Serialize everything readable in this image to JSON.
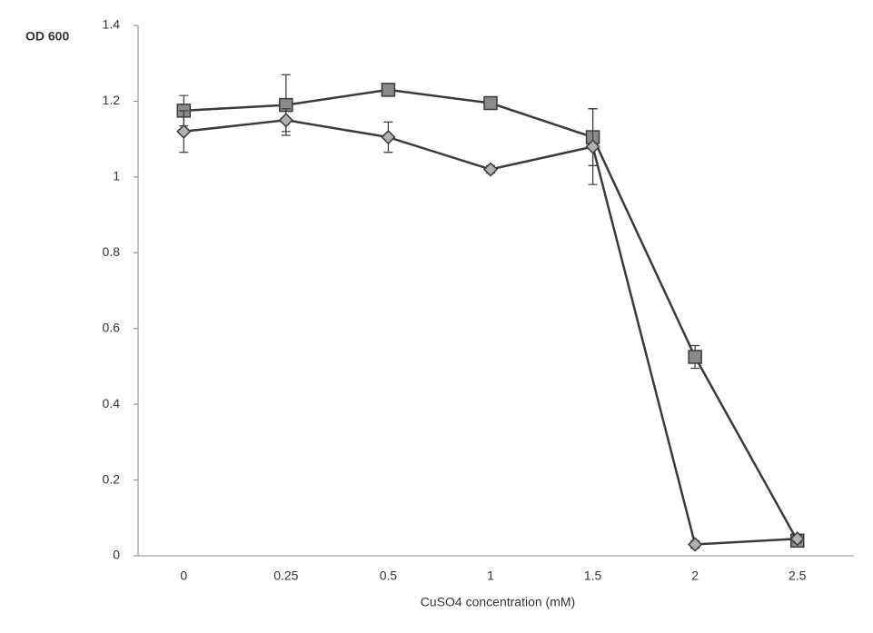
{
  "chart_data": {
    "type": "line",
    "y_label": "OD 600",
    "x_label": "CuSO4 concentration (mM)",
    "categories": [
      "0",
      "0.25",
      "0.5",
      "1",
      "1.5",
      "2",
      "2.5"
    ],
    "series": [
      {
        "marker": "square",
        "color": "#3a3a3a",
        "values": [
          1.175,
          1.19,
          1.23,
          1.195,
          1.105,
          0.525,
          0.04
        ],
        "errors": [
          0.04,
          0.08,
          0.01,
          0.01,
          0.075,
          0.03,
          0.01
        ]
      },
      {
        "marker": "diamond",
        "color": "#3a3a3a",
        "values": [
          1.12,
          1.15,
          1.105,
          1.02,
          1.08,
          0.03,
          0.045
        ],
        "errors": [
          0.055,
          0.03,
          0.04,
          0.01,
          0.1,
          0.01,
          0.01
        ]
      }
    ],
    "ylim": [
      0,
      1.4
    ],
    "yticks": [
      0,
      0.2,
      0.4,
      0.6,
      0.8,
      1,
      1.2,
      1.4
    ],
    "grid": false
  }
}
